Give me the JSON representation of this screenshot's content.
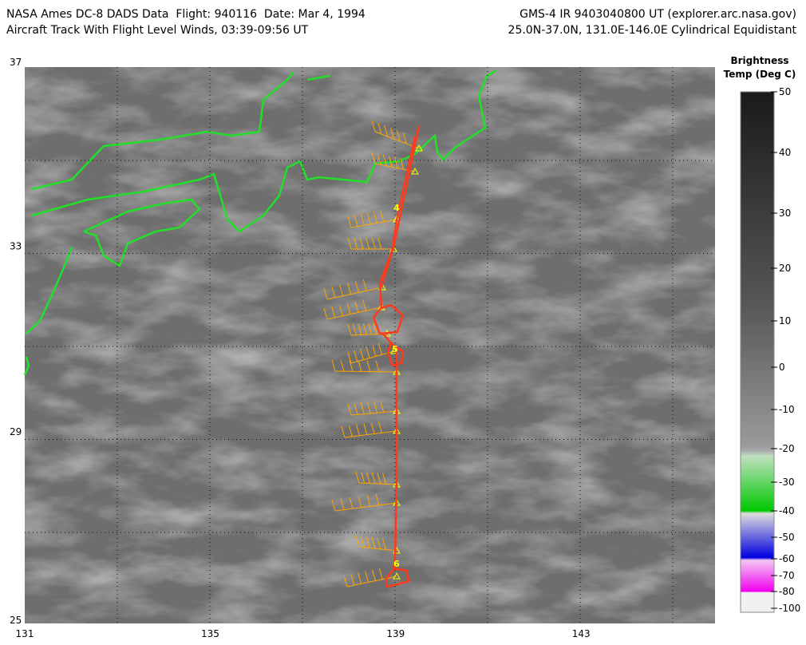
{
  "header": {
    "left": [
      "NASA Ames DC-8 DADS Data  Flight: 940116  Date: Mar 4, 1994",
      "Aircraft Track With Flight Level Winds, 03:39-09:56 UT"
    ],
    "right": [
      "GMS-4 IR 9403040800 UT (explorer.arc.nasa.gov)",
      "25.0N-37.0N, 131.0E-146.0E Cylindrical Equidistant"
    ]
  },
  "map": {
    "lat_labels": [
      37,
      33,
      29,
      25
    ],
    "lon_labels": [
      131,
      135,
      139,
      143
    ],
    "track_labels": [
      "4",
      "5",
      "6"
    ]
  },
  "colorbar": {
    "title": [
      "Brightness",
      "Temp (Deg C)"
    ],
    "ticks": [
      50,
      40,
      30,
      20,
      10,
      0,
      -10,
      -20,
      -30,
      -40,
      -50,
      -60,
      -70,
      -80,
      -100
    ]
  }
}
